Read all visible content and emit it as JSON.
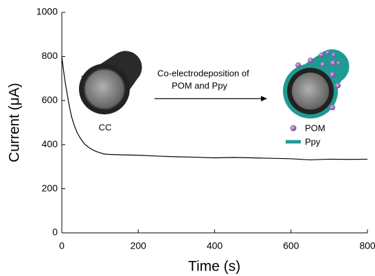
{
  "chart_data": {
    "type": "line",
    "x_label": "Time (s)",
    "y_label": "Current (μA)",
    "x": [
      0,
      5,
      10,
      18,
      25,
      32,
      40,
      50,
      60,
      70,
      80,
      90,
      100,
      110,
      120,
      150,
      200,
      250,
      300,
      350,
      400,
      450,
      500,
      550,
      600,
      650,
      700,
      750,
      800
    ],
    "series": [
      {
        "color": "#000000",
        "values": [
          800,
          730,
          670,
          590,
          530,
          490,
          455,
          425,
          402,
          388,
          377,
          369,
          363,
          358,
          356,
          354,
          352,
          348,
          345,
          343,
          340,
          342,
          340,
          338,
          336,
          331,
          334,
          333,
          334
        ]
      }
    ],
    "xlim": [
      0,
      800
    ],
    "xticks": [
      0,
      200,
      400,
      600,
      800
    ],
    "ylim": [
      0,
      1000
    ],
    "yticks": [
      0,
      200,
      400,
      600,
      800,
      1000
    ],
    "annotations": [
      "Co-electrodeposition of",
      "POM and Ppy",
      "CC",
      "POM",
      "Ppy"
    ]
  }
}
